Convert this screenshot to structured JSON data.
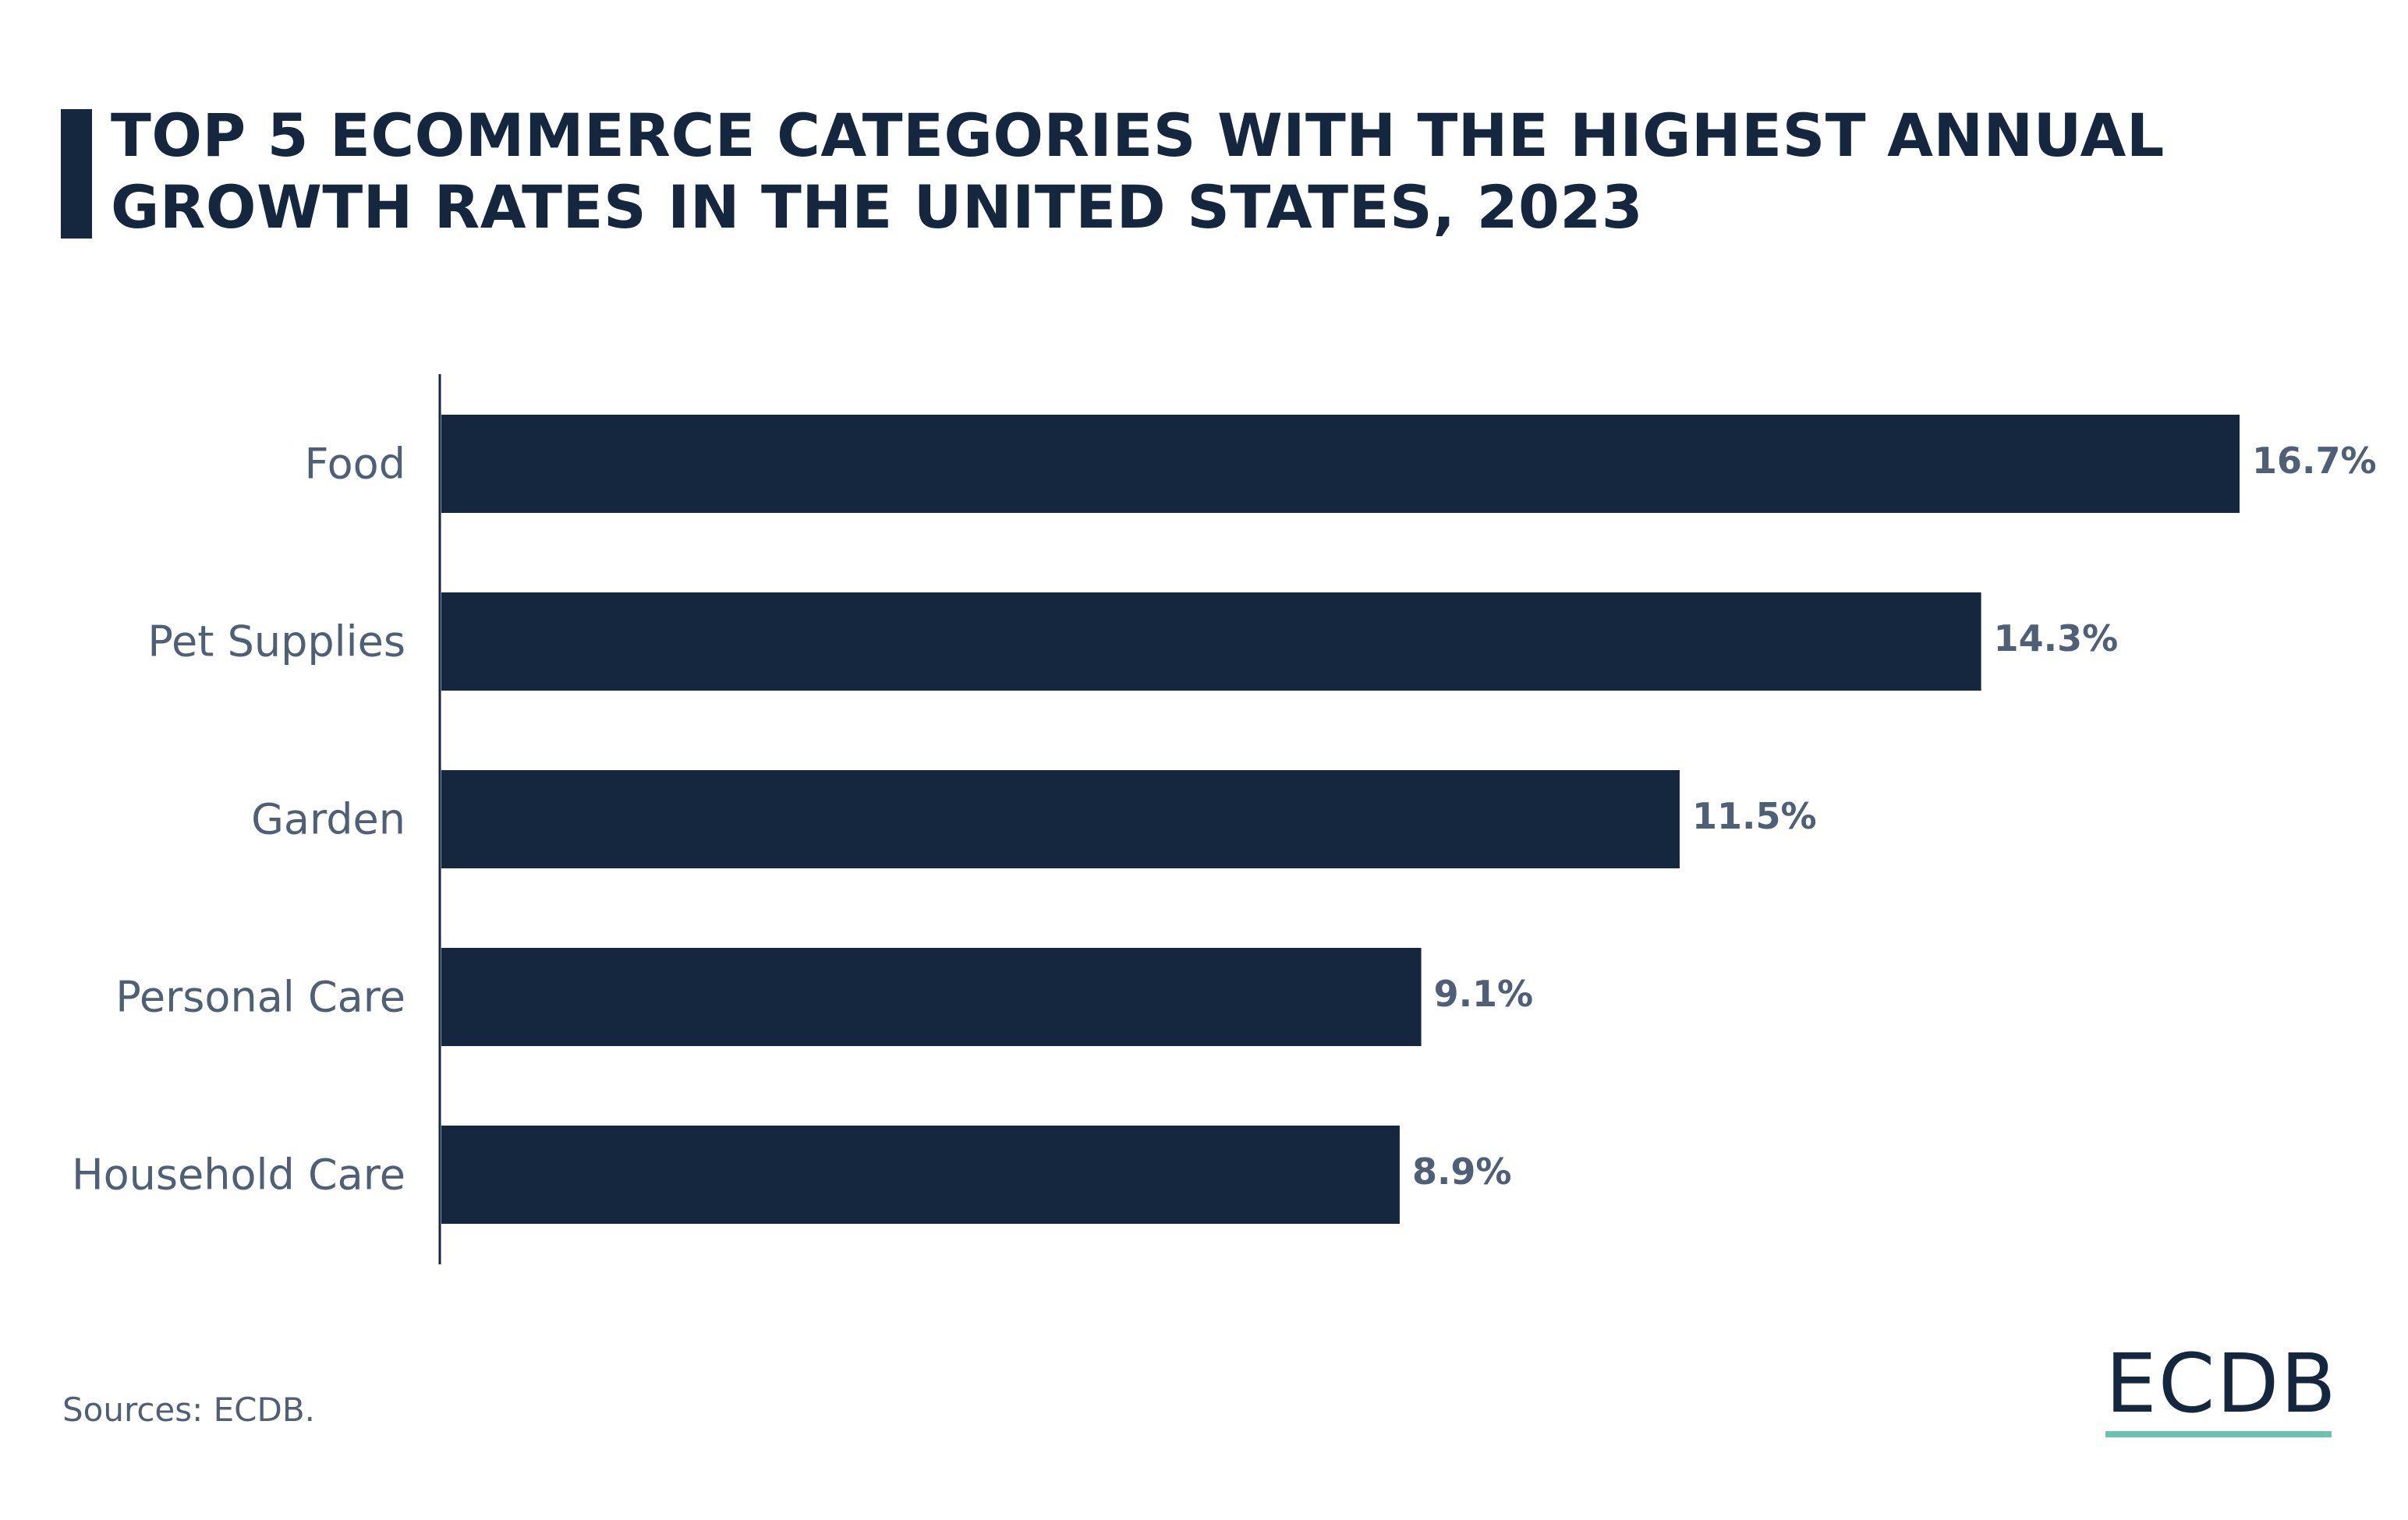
{
  "title": "TOP 5 ECOMMERCE CATEGORIES WITH THE HIGHEST ANNUAL GROWTH RATES IN THE UNITED STATES, 2023",
  "footer": {
    "sources": "Sources: ECDB."
  },
  "logo": {
    "text": "ECDB"
  },
  "colors": {
    "bar": "#14273f",
    "label": "#4e5f76",
    "title": "#14273f",
    "logo_underline": "#6cc3ad"
  },
  "chart_data": {
    "type": "bar",
    "orientation": "horizontal",
    "categories": [
      "Food",
      "Pet Supplies",
      "Garden",
      "Personal Care",
      "Household Care"
    ],
    "values": [
      16.7,
      14.3,
      11.5,
      9.1,
      8.9
    ],
    "value_labels": [
      "16.7%",
      "14.3%",
      "11.5%",
      "9.1%",
      "8.9%"
    ],
    "xlim": [
      0,
      16.7
    ],
    "grid": false,
    "legend": "none"
  }
}
